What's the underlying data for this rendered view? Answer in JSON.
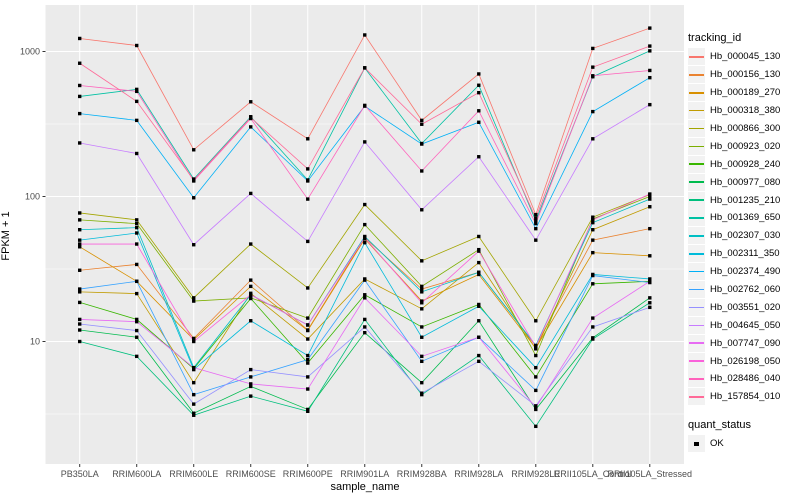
{
  "chart_data": {
    "type": "line",
    "xlabel": "sample_name",
    "ylabel": "FPKM + 1",
    "y_scale": "log10",
    "y_ticks": [
      10,
      100,
      1000
    ],
    "y_tick_labels": [
      "10",
      "100",
      "1000"
    ],
    "y_minor_ticks": [
      3.162,
      31.62,
      316.2
    ],
    "ylim": [
      1.4,
      2090
    ],
    "grid": true,
    "panel_bg": "#EBEBEB",
    "grid_color": "#FFFFFF",
    "tick_label_color": "#4D4D4D",
    "point_color": "#000000",
    "point_shape": "square",
    "legend_position": "right",
    "categories": [
      "PB350LA",
      "RRIM600LA",
      "RRIM600LE",
      "RRIM600SE",
      "RRIM600PE",
      "RRIM901LA",
      "RRIM928BA",
      "RRIM928LA",
      "RRIM928LE",
      "RRII105LA_Control",
      "RRII105LA_Stressed"
    ],
    "legend": {
      "title": "tracking_id"
    },
    "quant_legend": {
      "title": "quant_status",
      "items": [
        {
          "label": "OK",
          "marker": "square",
          "color": "#000000"
        }
      ]
    },
    "series": [
      {
        "name": "Hb_000045_130",
        "color": "#F8766D",
        "values": [
          1230,
          1100,
          210,
          450,
          250,
          1300,
          335,
          700,
          75,
          1050,
          1450
        ]
      },
      {
        "name": "Hb_000156_130",
        "color": "#EA8331",
        "values": [
          31,
          34,
          10.5,
          26.5,
          12,
          52,
          23,
          30,
          9.3,
          50,
          60
        ]
      },
      {
        "name": "Hb_000189_270",
        "color": "#D89000",
        "values": [
          45,
          26,
          10.3,
          24,
          11.9,
          51,
          19,
          29,
          9.0,
          41,
          39
        ]
      },
      {
        "name": "Hb_000318_380",
        "color": "#C09B00",
        "values": [
          22,
          21.4,
          5.2,
          21.5,
          10.4,
          27,
          16.8,
          35,
          8.9,
          59,
          85
        ]
      },
      {
        "name": "Hb_000866_300",
        "color": "#A3A500",
        "values": [
          77,
          69,
          20,
          47,
          23.4,
          88,
          36,
          53,
          13.9,
          72,
          103
        ]
      },
      {
        "name": "Hb_000923_020",
        "color": "#7CAE00",
        "values": [
          69,
          65,
          19,
          20,
          14.5,
          64,
          24,
          43,
          8.0,
          70,
          100
        ]
      },
      {
        "name": "Hb_000928_240",
        "color": "#39B600",
        "values": [
          18.6,
          14.2,
          6.5,
          19.8,
          7.1,
          21,
          12.6,
          18,
          5.7,
          25,
          26
        ]
      },
      {
        "name": "Hb_000977_080",
        "color": "#00BB4E",
        "values": [
          12,
          10.7,
          3.2,
          4.9,
          3.4,
          11.5,
          5.2,
          13.9,
          3.4,
          10.6,
          20
        ]
      },
      {
        "name": "Hb_001235_210",
        "color": "#00BF7D",
        "values": [
          10,
          7.9,
          3.1,
          4.2,
          3.3,
          14.2,
          4.3,
          8.0,
          2.6,
          10.4,
          18.5
        ]
      },
      {
        "name": "Hb_001369_650",
        "color": "#00C1A3",
        "values": [
          490,
          548,
          132,
          355,
          130,
          770,
          232,
          585,
          68,
          670,
          1010
        ]
      },
      {
        "name": "Hb_002307_030",
        "color": "#00BFC4",
        "values": [
          59,
          61,
          6.6,
          21,
          13,
          53,
          22,
          30,
          9.4,
          66,
          96
        ]
      },
      {
        "name": "Hb_002311_350",
        "color": "#00BBDA",
        "values": [
          50,
          56,
          6.4,
          13.9,
          8.0,
          48,
          10.7,
          17.5,
          6.6,
          29,
          27
        ]
      },
      {
        "name": "Hb_002374_490",
        "color": "#00B0F6",
        "values": [
          373,
          335,
          98,
          302,
          128,
          420,
          230,
          325,
          60,
          385,
          660
        ]
      },
      {
        "name": "Hb_002762_060",
        "color": "#35A2FF",
        "values": [
          23,
          26,
          4.3,
          5.7,
          7.5,
          26.5,
          7.3,
          10.7,
          4.6,
          28.5,
          25.5
        ]
      },
      {
        "name": "Hb_003551_020",
        "color": "#9590FF",
        "values": [
          13.2,
          11.9,
          3.7,
          6.4,
          5.7,
          12.6,
          4.4,
          7.3,
          3.6,
          12.6,
          17.2
        ]
      },
      {
        "name": "Hb_004645_050",
        "color": "#C77CFF",
        "values": [
          234,
          198,
          46.5,
          105,
          49,
          238,
          81,
          188,
          50,
          250,
          430
        ]
      },
      {
        "name": "Hb_007747_090",
        "color": "#E76BF3",
        "values": [
          14.2,
          13.7,
          6.6,
          5.1,
          4.7,
          20,
          7.9,
          10.7,
          3.5,
          14.5,
          26
        ]
      },
      {
        "name": "Hb_026198_050",
        "color": "#FA62DB",
        "values": [
          47,
          47,
          10,
          21,
          13,
          52,
          18.5,
          42,
          9.2,
          69,
          104
        ]
      },
      {
        "name": "Hb_028486_040",
        "color": "#FF62BC",
        "values": [
          583,
          531,
          128,
          345,
          96,
          425,
          150,
          390,
          65,
          680,
          740
        ]
      },
      {
        "name": "Hb_157854_010",
        "color": "#FF6A98",
        "values": [
          830,
          453,
          130,
          350,
          155,
          772,
          315,
          520,
          71,
          780,
          1090
        ]
      }
    ]
  }
}
